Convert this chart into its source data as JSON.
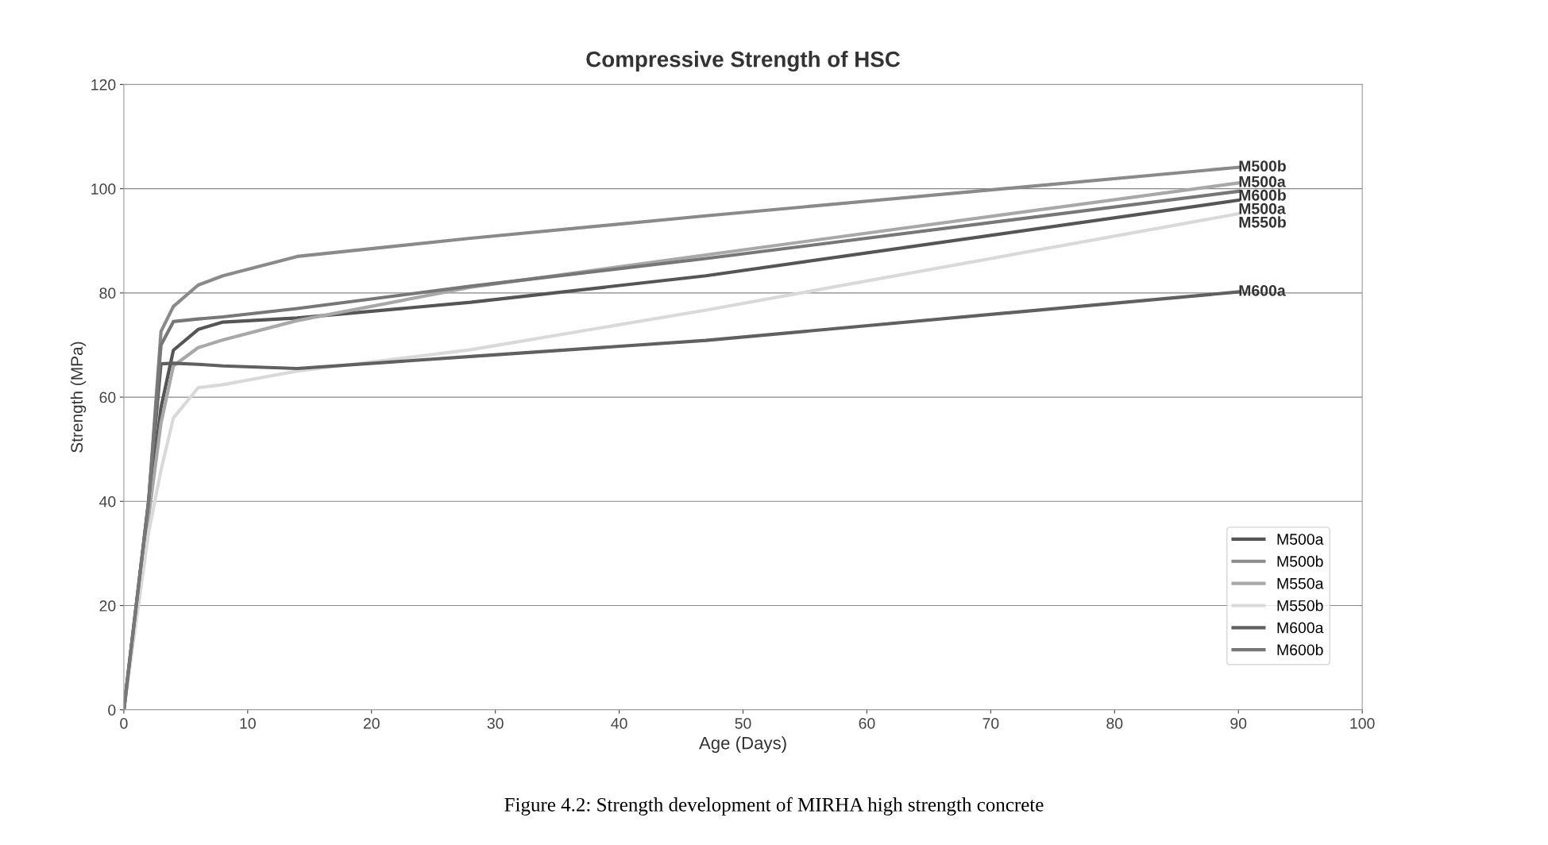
{
  "chart_data": {
    "type": "line",
    "title": "Compressive Strength of HSC",
    "xlabel": "Age (Days)",
    "ylabel": "Strength (MPa)",
    "x": [
      0,
      2,
      3,
      4,
      6,
      8,
      14,
      28,
      47,
      90
    ],
    "series": [
      {
        "name": "M500a",
        "color": "#555555",
        "values": [
          0,
          38,
          58,
          69,
          73,
          74.4,
          75.2,
          78.2,
          83.3,
          97.8
        ]
      },
      {
        "name": "M500b",
        "color": "#8a8a8a",
        "values": [
          0,
          40,
          72.6,
          77.4,
          81.5,
          83.3,
          87,
          90.5,
          94.8,
          104.1
        ]
      },
      {
        "name": "M550a",
        "color": "#a8a8a8",
        "values": [
          0,
          37,
          55,
          66,
          69.5,
          71,
          74.7,
          81.1,
          87.3,
          101.1
        ]
      },
      {
        "name": "M550b",
        "color": "#d9d9d9",
        "values": [
          0,
          34,
          46,
          56,
          61.8,
          62.4,
          65,
          69.1,
          76.7,
          95.2
        ]
      },
      {
        "name": "M600a",
        "color": "#606060",
        "values": [
          0,
          40,
          66.4,
          66.5,
          66.3,
          66,
          65.5,
          67.8,
          70.9,
          80.2
        ]
      },
      {
        "name": "M600b",
        "color": "#777777",
        "values": [
          0,
          40,
          70,
          74.5,
          75,
          75.4,
          77,
          81.3,
          86.6,
          99.5
        ]
      }
    ],
    "xlim": [
      0,
      100
    ],
    "xticks": [
      0,
      10,
      20,
      30,
      40,
      50,
      60,
      70,
      80,
      90,
      100
    ],
    "ylim": [
      0,
      120
    ],
    "yticks": [
      0,
      20,
      40,
      60,
      80,
      100,
      120
    ],
    "grid": "y",
    "legend": "bottom right",
    "marker": "none",
    "line_style": "solid",
    "annotations": [
      "M500b",
      "M500a",
      "M600b",
      "M500a",
      "M550b",
      "M600a",
      "Figure 4.2: Strength development of MIRHA high strength concrete"
    ]
  }
}
